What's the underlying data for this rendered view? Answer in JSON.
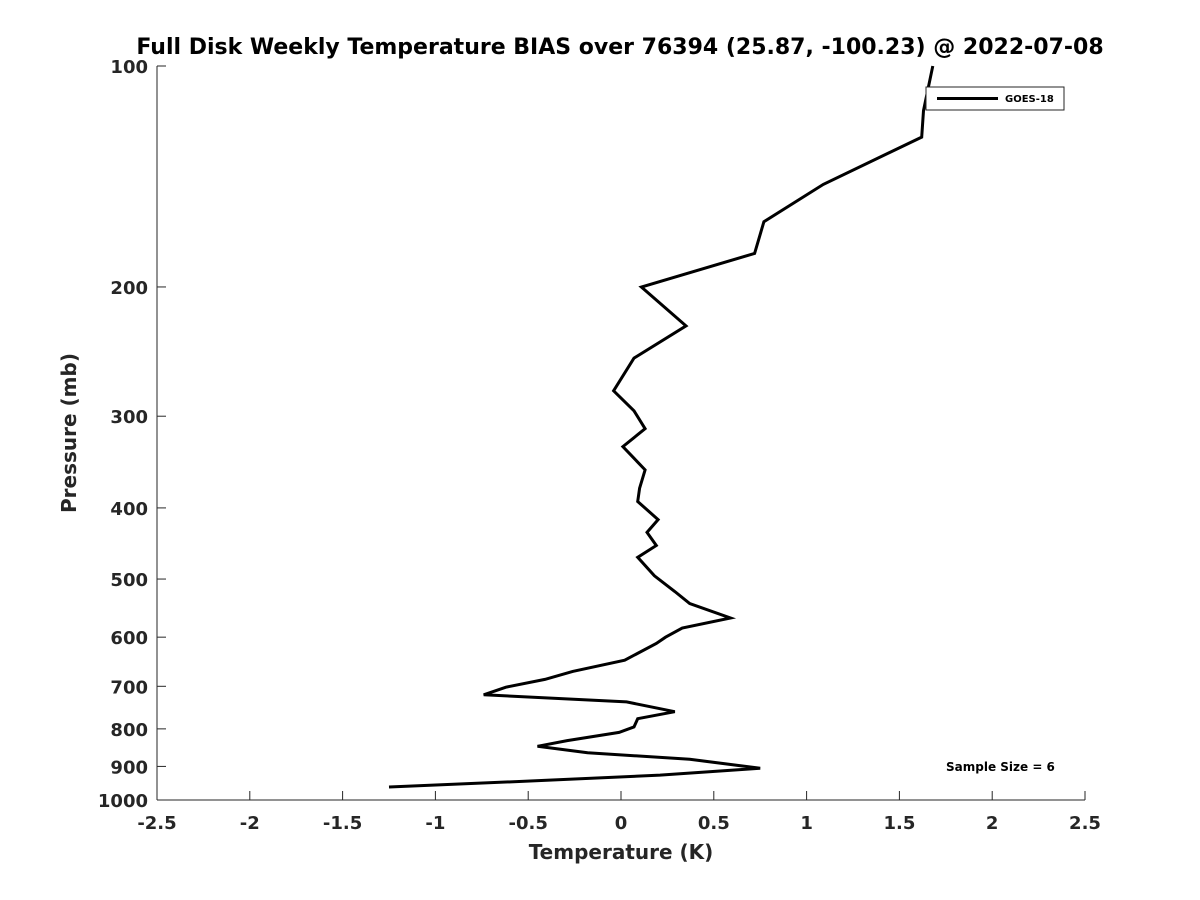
{
  "chart_data": {
    "type": "line",
    "title": "Full Disk Weekly Temperature BIAS over 76394 (25.87, -100.23) @ 2022-07-08",
    "xlabel": "Temperature (K)",
    "ylabel": "Pressure (mb)",
    "xlim": [
      -2.5,
      2.5
    ],
    "ylim": [
      100,
      1000
    ],
    "y_scale": "log",
    "y_reversed": true,
    "x_ticks": [
      -2.5,
      -2,
      -1.5,
      -1,
      -0.5,
      0,
      0.5,
      1,
      1.5,
      2,
      2.5
    ],
    "x_tick_labels": [
      "-2.5",
      "-2",
      "-1.5",
      "-1",
      "-0.5",
      "0",
      "0.5",
      "1",
      "1.5",
      "2",
      "2.5"
    ],
    "y_ticks": [
      100,
      200,
      300,
      400,
      500,
      600,
      700,
      800,
      900,
      1000
    ],
    "y_tick_labels": [
      "100",
      "200",
      "300",
      "400",
      "500",
      "600",
      "700",
      "800",
      "900",
      "1000"
    ],
    "grid": false,
    "legend_position": "top-right",
    "annotation": "Sample Size = 6",
    "series": [
      {
        "name": "GOES-18",
        "color": "#000000",
        "points": [
          {
            "x": 1.68,
            "y": 100
          },
          {
            "x": 1.63,
            "y": 115
          },
          {
            "x": 1.62,
            "y": 125
          },
          {
            "x": 1.09,
            "y": 145
          },
          {
            "x": 0.77,
            "y": 163
          },
          {
            "x": 0.72,
            "y": 180
          },
          {
            "x": 0.11,
            "y": 200
          },
          {
            "x": 0.35,
            "y": 226
          },
          {
            "x": 0.07,
            "y": 250
          },
          {
            "x": -0.04,
            "y": 277
          },
          {
            "x": 0.07,
            "y": 295
          },
          {
            "x": 0.13,
            "y": 312
          },
          {
            "x": 0.01,
            "y": 330
          },
          {
            "x": 0.13,
            "y": 355
          },
          {
            "x": 0.1,
            "y": 376
          },
          {
            "x": 0.09,
            "y": 392
          },
          {
            "x": 0.2,
            "y": 415
          },
          {
            "x": 0.14,
            "y": 432
          },
          {
            "x": 0.19,
            "y": 450
          },
          {
            "x": 0.09,
            "y": 467
          },
          {
            "x": 0.18,
            "y": 495
          },
          {
            "x": 0.29,
            "y": 520
          },
          {
            "x": 0.37,
            "y": 540
          },
          {
            "x": 0.59,
            "y": 565
          },
          {
            "x": 0.33,
            "y": 583
          },
          {
            "x": 0.24,
            "y": 600
          },
          {
            "x": 0.19,
            "y": 612
          },
          {
            "x": 0.02,
            "y": 645
          },
          {
            "x": -0.26,
            "y": 668
          },
          {
            "x": -0.41,
            "y": 685
          },
          {
            "x": -0.62,
            "y": 702
          },
          {
            "x": -0.74,
            "y": 719
          },
          {
            "x": 0.03,
            "y": 735
          },
          {
            "x": 0.29,
            "y": 758
          },
          {
            "x": 0.09,
            "y": 775
          },
          {
            "x": 0.07,
            "y": 795
          },
          {
            "x": -0.01,
            "y": 809
          },
          {
            "x": -0.29,
            "y": 830
          },
          {
            "x": -0.45,
            "y": 845
          },
          {
            "x": -0.18,
            "y": 862
          },
          {
            "x": 0.37,
            "y": 880
          },
          {
            "x": 0.75,
            "y": 905
          },
          {
            "x": 0.21,
            "y": 925
          },
          {
            "x": -0.4,
            "y": 940
          },
          {
            "x": -1.25,
            "y": 960
          }
        ]
      }
    ]
  }
}
